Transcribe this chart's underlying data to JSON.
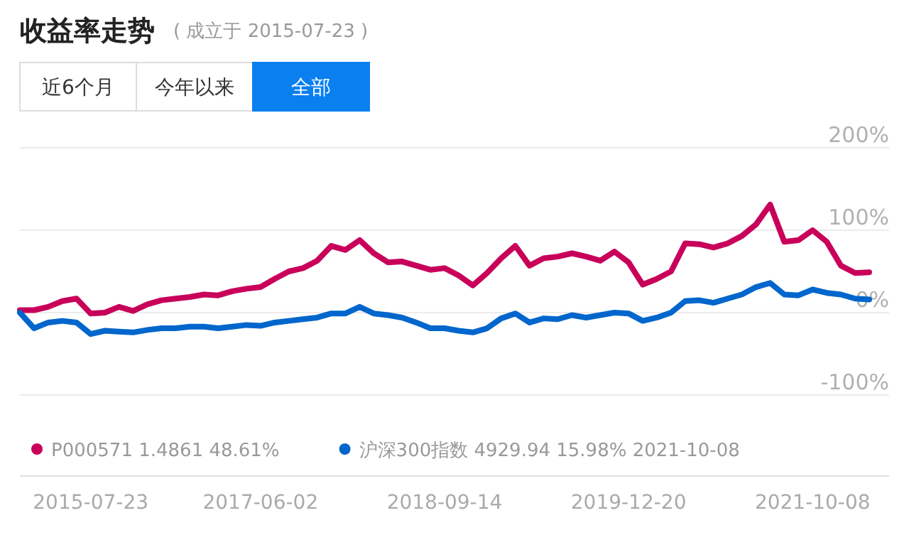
{
  "chart_data": {
    "type": "line",
    "title": "收益率走势",
    "subtitle": "( 成立于 2015-07-23 )",
    "annotations": [
      "近6个月",
      "今年以来",
      "全部"
    ],
    "categories": [
      null,
      null,
      null,
      null,
      null,
      "2015-07-23",
      null,
      null,
      null,
      null,
      null,
      null,
      null,
      null,
      null,
      null,
      null,
      "2017-06-02",
      null,
      null,
      null,
      null,
      null,
      null,
      null,
      null,
      null,
      null,
      null,
      null,
      "2018-09-14",
      null,
      null,
      null,
      null,
      null,
      null,
      null,
      null,
      null,
      null,
      null,
      null,
      "2019-12-20",
      null,
      null,
      null,
      null,
      null,
      null,
      null,
      null,
      null,
      null,
      null,
      null,
      "2021-10-08",
      null,
      null,
      null,
      null
    ],
    "series": [
      {
        "name": "P000571 1.4861 48.61%",
        "color": "#c8005a",
        "values": [
          3,
          3,
          7,
          14,
          17,
          -1,
          0,
          7,
          2,
          10,
          15,
          17,
          19,
          22,
          21,
          26,
          29,
          31,
          41,
          50,
          54,
          63,
          81,
          76,
          88,
          72,
          61,
          62,
          57,
          52,
          54,
          45,
          33,
          48,
          66,
          81,
          57,
          66,
          68,
          72,
          68,
          63,
          74,
          61,
          34,
          41,
          50,
          84,
          83,
          79,
          84,
          93,
          107,
          131,
          86,
          88,
          100,
          86,
          57,
          48,
          49
        ]
      },
      {
        "name": "沪深300指数 4929.94 15.98% 2021-10-08",
        "color": "#0066cc",
        "values": [
          0,
          -19,
          -12,
          -10,
          -12,
          -26,
          -22,
          -23,
          -24,
          -21,
          -19,
          -19,
          -17,
          -17,
          -19,
          -17,
          -15,
          -16,
          -12,
          -10,
          -8,
          -6,
          -1,
          -1,
          7,
          -1,
          -3,
          -6,
          -12,
          -19,
          -19,
          -22,
          -24,
          -19,
          -7,
          -1,
          -12,
          -7,
          -8,
          -3,
          -6,
          -3,
          0,
          -1,
          -10,
          -6,
          0,
          14,
          15,
          12,
          17,
          22,
          31,
          36,
          22,
          21,
          28,
          24,
          22,
          17,
          16
        ]
      }
    ],
    "ylim": [
      -100,
      200
    ],
    "yticks": [
      {
        "value": 200,
        "label": "200%"
      },
      {
        "value": 100,
        "label": "100%"
      },
      {
        "value": 0,
        "label": "0%"
      },
      {
        "value": -100,
        "label": "-100%"
      }
    ],
    "grid": "y",
    "legend": "bottom",
    "marker": "none",
    "line_style": "solid"
  }
}
